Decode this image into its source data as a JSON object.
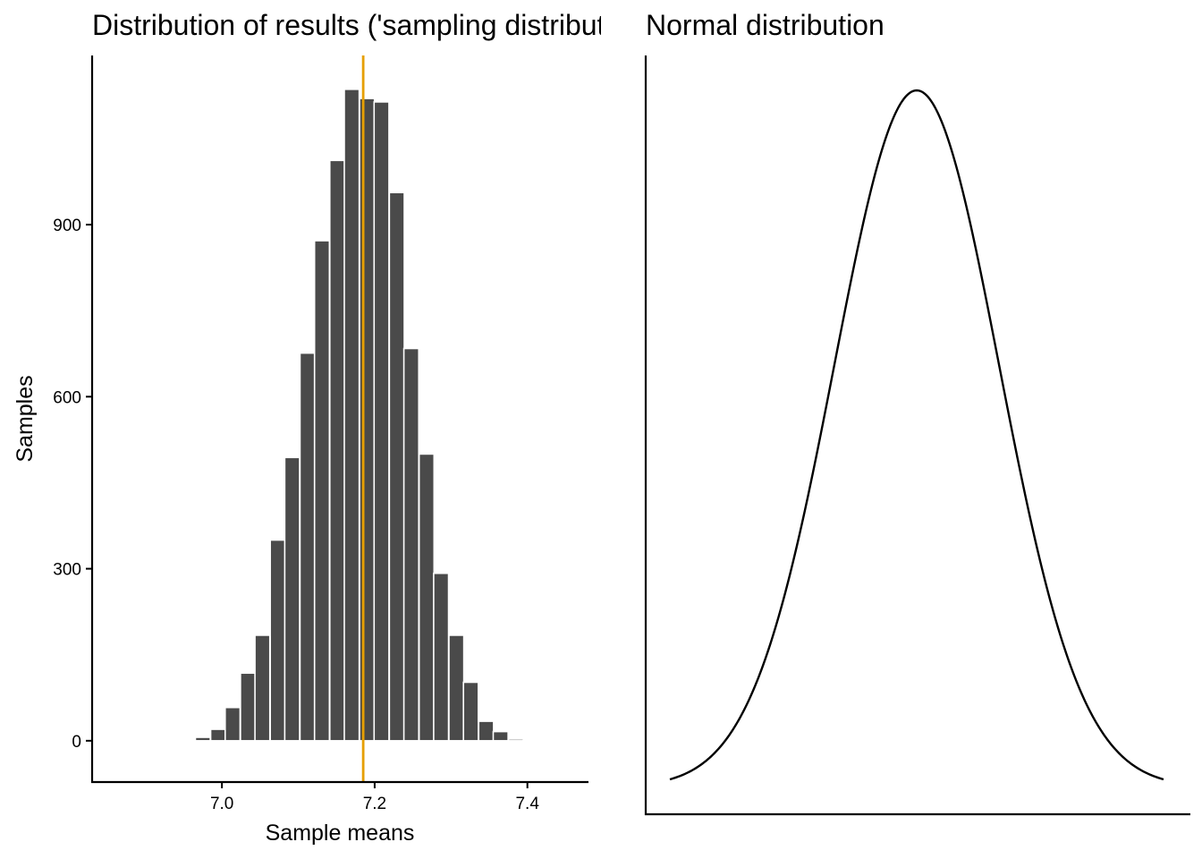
{
  "chart_data": [
    {
      "type": "bar",
      "title": "Distribution of results ('sampling distribution')",
      "xlabel": "Sample means",
      "ylabel": "Samples",
      "xlim": [
        6.83,
        7.48
      ],
      "ylim": [
        -72,
        1195
      ],
      "x_ticks": [
        7.0,
        7.2,
        7.4
      ],
      "x_tick_labels": [
        "7.0",
        "7.2",
        "7.4"
      ],
      "y_ticks": [
        0,
        300,
        600,
        900
      ],
      "y_tick_labels": [
        "0",
        "300",
        "600",
        "900"
      ],
      "bin_width": 0.0195,
      "bin_centers": [
        6.975,
        6.995,
        7.014,
        7.034,
        7.053,
        7.073,
        7.092,
        7.112,
        7.131,
        7.151,
        7.17,
        7.19,
        7.209,
        7.229,
        7.248,
        7.268,
        7.287,
        7.307,
        7.326,
        7.346,
        7.365,
        7.385,
        7.404
      ],
      "values": [
        6,
        20,
        58,
        118,
        184,
        350,
        494,
        676,
        872,
        1012,
        1136,
        1120,
        1114,
        956,
        684,
        500,
        292,
        184,
        102,
        34,
        16,
        3,
        0
      ],
      "vline": {
        "x": 7.185,
        "color": "#E69F00"
      },
      "bar_color": "#4a4a4a",
      "grid": false
    },
    {
      "type": "line",
      "title": "Normal distribution",
      "distribution": "normal",
      "x_range_sd": [
        -3,
        3
      ],
      "axes_ticks": false,
      "line_color": "#000000"
    }
  ]
}
